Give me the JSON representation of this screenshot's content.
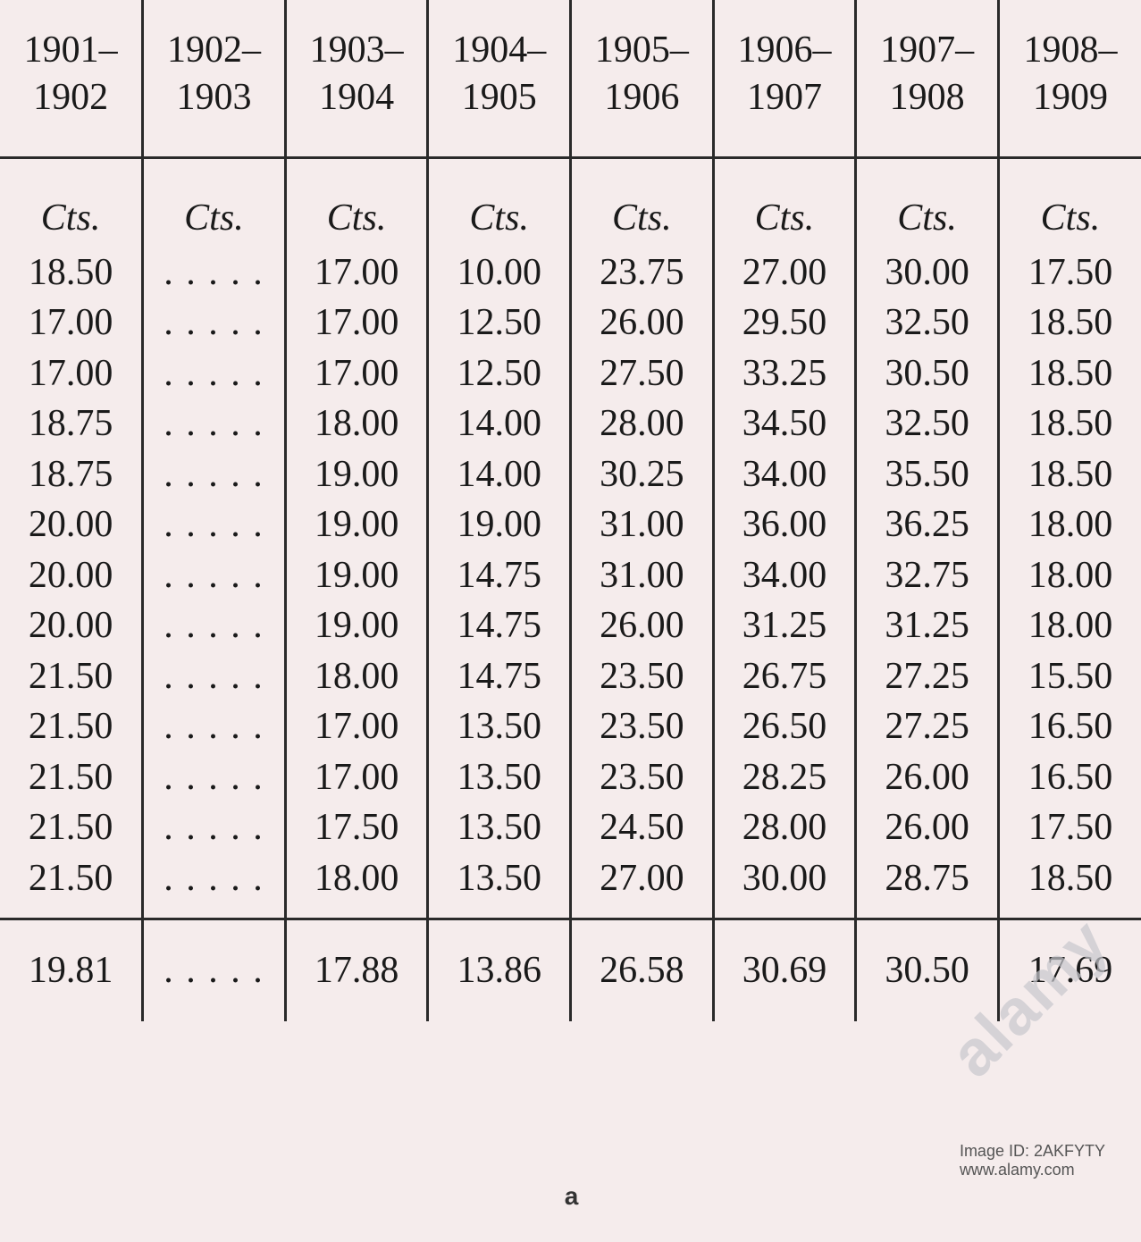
{
  "table": {
    "background_color": "#f5ecec",
    "text_color": "#1a1a1a",
    "border_color": "#2a2a2a",
    "font_family": "Georgia, serif",
    "header_fontsize": 42,
    "cell_fontsize": 42,
    "columns": [
      {
        "line1": "1901–",
        "line2": "1902"
      },
      {
        "line1": "1902–",
        "line2": "1903"
      },
      {
        "line1": "1903–",
        "line2": "1904"
      },
      {
        "line1": "1904–",
        "line2": "1905"
      },
      {
        "line1": "1905–",
        "line2": "1906"
      },
      {
        "line1": "1906–",
        "line2": "1907"
      },
      {
        "line1": "1907–",
        "line2": "1908"
      },
      {
        "line1": "1908–",
        "line2": "1909"
      }
    ],
    "unit_label": "Cts.",
    "empty_cell": ". . . . .",
    "rows": [
      [
        "18.50",
        "",
        "17.00",
        "10.00",
        "23.75",
        "27.00",
        "30.00",
        "17.50"
      ],
      [
        "17.00",
        "",
        "17.00",
        "12.50",
        "26.00",
        "29.50",
        "32.50",
        "18.50"
      ],
      [
        "17.00",
        "",
        "17.00",
        "12.50",
        "27.50",
        "33.25",
        "30.50",
        "18.50"
      ],
      [
        "18.75",
        "",
        "18.00",
        "14.00",
        "28.00",
        "34.50",
        "32.50",
        "18.50"
      ],
      [
        "18.75",
        "",
        "19.00",
        "14.00",
        "30.25",
        "34.00",
        "35.50",
        "18.50"
      ],
      [
        "20.00",
        "",
        "19.00",
        "19.00",
        "31.00",
        "36.00",
        "36.25",
        "18.00"
      ],
      [
        "20.00",
        "",
        "19.00",
        "14.75",
        "31.00",
        "34.00",
        "32.75",
        "18.00"
      ],
      [
        "20.00",
        "",
        "19.00",
        "14.75",
        "26.00",
        "31.25",
        "31.25",
        "18.00"
      ],
      [
        "21.50",
        "",
        "18.00",
        "14.75",
        "23.50",
        "26.75",
        "27.25",
        "15.50"
      ],
      [
        "21.50",
        "",
        "17.00",
        "13.50",
        "23.50",
        "26.50",
        "27.25",
        "16.50"
      ],
      [
        "21.50",
        "",
        "17.00",
        "13.50",
        "23.50",
        "28.25",
        "26.00",
        "16.50"
      ],
      [
        "21.50",
        "",
        "17.50",
        "13.50",
        "24.50",
        "28.00",
        "26.00",
        "17.50"
      ],
      [
        "21.50",
        "",
        "18.00",
        "13.50",
        "27.00",
        "30.00",
        "28.75",
        "18.50"
      ]
    ],
    "summary": [
      "19.81",
      "",
      "17.88",
      "13.86",
      "26.58",
      "30.69",
      "30.50",
      "17.69"
    ]
  },
  "watermark": {
    "brand": "alamy",
    "image_id": "Image ID: 2AKFYTY",
    "site": "www.alamy.com",
    "logo_letter": "a"
  }
}
